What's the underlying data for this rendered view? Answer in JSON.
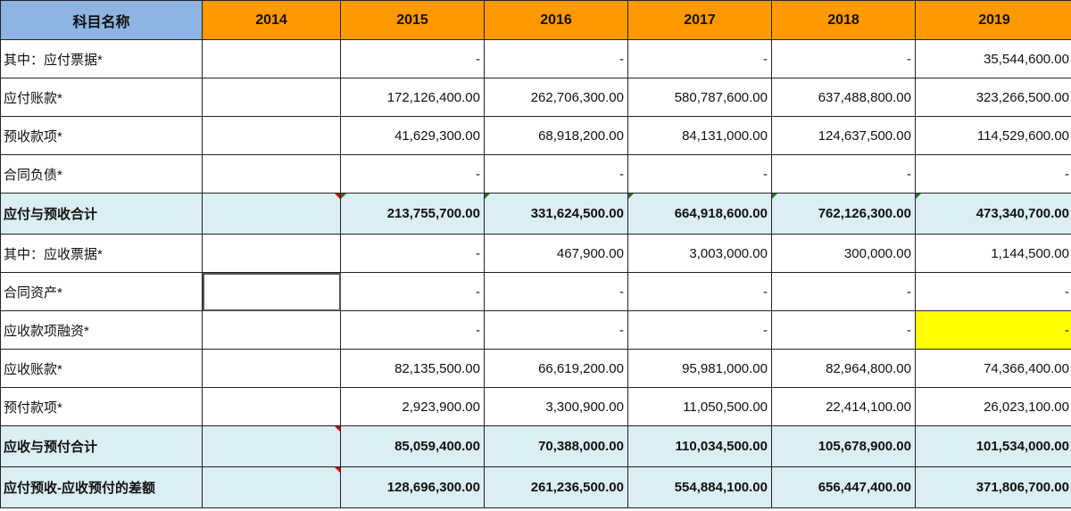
{
  "header": {
    "name": "科目名称",
    "years": [
      "2014",
      "2015",
      "2016",
      "2017",
      "2018",
      "2019"
    ]
  },
  "colors": {
    "header_name_bg": "#8db4e2",
    "header_year_bg": "#ff9900",
    "sum_row_bg": "#daeef3",
    "highlight": "#ffff00"
  },
  "rows": [
    {
      "label": "其中：应付票据*",
      "sum": false,
      "values": [
        "",
        "-",
        "-",
        "-",
        "-",
        "35,544,600.00"
      ]
    },
    {
      "label": "应付账款*",
      "sum": false,
      "values": [
        "",
        "172,126,400.00",
        "262,706,300.00",
        "580,787,600.00",
        "637,488,800.00",
        "323,266,500.00"
      ]
    },
    {
      "label": "预收款项*",
      "sum": false,
      "values": [
        "",
        "41,629,300.00",
        "68,918,200.00",
        "84,131,000.00",
        "124,637,500.00",
        "114,529,600.00"
      ]
    },
    {
      "label": "合同负债*",
      "sum": false,
      "values": [
        "",
        "-",
        "-",
        "-",
        "-",
        "-"
      ]
    },
    {
      "label": "应付与预收合计",
      "sum": true,
      "values": [
        "",
        "213,755,700.00",
        "331,624,500.00",
        "664,918,600.00",
        "762,126,300.00",
        "473,340,700.00"
      ]
    },
    {
      "label": "其中：应收票据*",
      "sum": false,
      "values": [
        "",
        "-",
        "467,900.00",
        "3,003,000.00",
        "300,000.00",
        "1,144,500.00"
      ]
    },
    {
      "label": "合同资产*",
      "sum": false,
      "values": [
        "",
        "-",
        "-",
        "-",
        "-",
        "-"
      ]
    },
    {
      "label": "应收款项融资*",
      "sum": false,
      "values": [
        "",
        "-",
        "-",
        "-",
        "-",
        "-"
      ]
    },
    {
      "label": "应收账款*",
      "sum": false,
      "values": [
        "",
        "82,135,500.00",
        "66,619,200.00",
        "95,981,000.00",
        "82,964,800.00",
        "74,366,400.00"
      ]
    },
    {
      "label": "预付款项*",
      "sum": false,
      "values": [
        "",
        "2,923,900.00",
        "3,300,900.00",
        "11,050,500.00",
        "22,414,100.00",
        "26,023,100.00"
      ]
    },
    {
      "label": "应收与预付合计",
      "sum": true,
      "values": [
        "",
        "85,059,400.00",
        "70,388,000.00",
        "110,034,500.00",
        "105,678,900.00",
        "101,534,000.00"
      ]
    },
    {
      "label": "应付预收-应收预付的差额",
      "sum": true,
      "values": [
        "",
        "128,696,300.00",
        "261,236,500.00",
        "554,884,100.00",
        "656,447,400.00",
        "371,806,700.00"
      ]
    }
  ]
}
